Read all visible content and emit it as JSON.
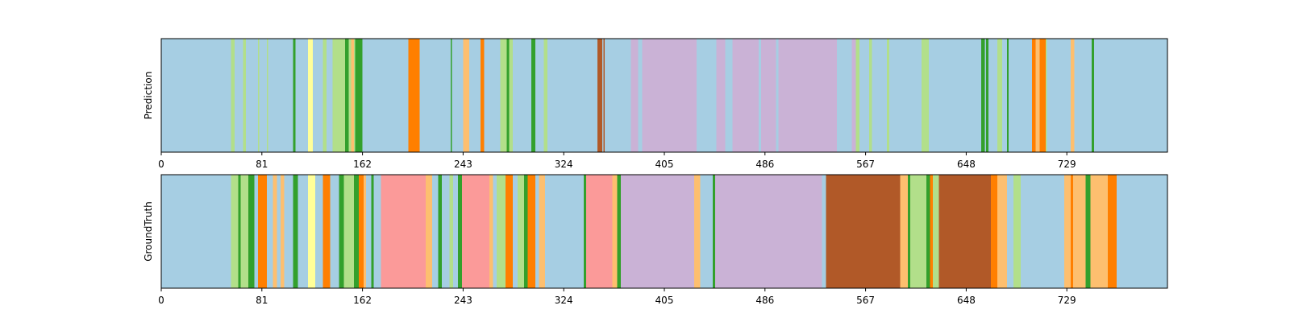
{
  "chart_data": [
    {
      "type": "heatmap",
      "ylabel": "Prediction",
      "xlim": [
        0,
        810
      ],
      "xticks": [
        0,
        81,
        162,
        243,
        324,
        405,
        486,
        567,
        648,
        729
      ],
      "segments": [
        {
          "start": 0,
          "end": 56,
          "color": "#a6cee3"
        },
        {
          "start": 56,
          "end": 59,
          "color": "#b2df8a"
        },
        {
          "start": 59,
          "end": 66,
          "color": "#a6cee3"
        },
        {
          "start": 66,
          "end": 68,
          "color": "#b2df8a"
        },
        {
          "start": 68,
          "end": 78,
          "color": "#a6cee3"
        },
        {
          "start": 78,
          "end": 79,
          "color": "#b2df8a"
        },
        {
          "start": 79,
          "end": 85,
          "color": "#a6cee3"
        },
        {
          "start": 85,
          "end": 86,
          "color": "#b2df8a"
        },
        {
          "start": 86,
          "end": 106,
          "color": "#a6cee3"
        },
        {
          "start": 106,
          "end": 108,
          "color": "#33a02c"
        },
        {
          "start": 108,
          "end": 118,
          "color": "#a6cee3"
        },
        {
          "start": 118,
          "end": 122,
          "color": "#ffff99"
        },
        {
          "start": 122,
          "end": 130,
          "color": "#a6cee3"
        },
        {
          "start": 130,
          "end": 133,
          "color": "#b2df8a"
        },
        {
          "start": 133,
          "end": 138,
          "color": "#a6cee3"
        },
        {
          "start": 138,
          "end": 148,
          "color": "#b2df8a"
        },
        {
          "start": 148,
          "end": 151,
          "color": "#33a02c"
        },
        {
          "start": 151,
          "end": 153,
          "color": "#b2df8a"
        },
        {
          "start": 153,
          "end": 155,
          "color": "#fdbf6f"
        },
        {
          "start": 155,
          "end": 156,
          "color": "#b2df8a"
        },
        {
          "start": 156,
          "end": 162,
          "color": "#33a02c"
        },
        {
          "start": 162,
          "end": 199,
          "color": "#a6cee3"
        },
        {
          "start": 199,
          "end": 208,
          "color": "#ff7f00"
        },
        {
          "start": 208,
          "end": 233,
          "color": "#a6cee3"
        },
        {
          "start": 233,
          "end": 234,
          "color": "#33a02c"
        },
        {
          "start": 234,
          "end": 243,
          "color": "#a6cee3"
        },
        {
          "start": 243,
          "end": 248,
          "color": "#fdbf6f"
        },
        {
          "start": 248,
          "end": 257,
          "color": "#a6cee3"
        },
        {
          "start": 257,
          "end": 260,
          "color": "#ff7f00"
        },
        {
          "start": 260,
          "end": 273,
          "color": "#a6cee3"
        },
        {
          "start": 273,
          "end": 278,
          "color": "#b2df8a"
        },
        {
          "start": 278,
          "end": 280,
          "color": "#33a02c"
        },
        {
          "start": 280,
          "end": 283,
          "color": "#b2df8a"
        },
        {
          "start": 283,
          "end": 298,
          "color": "#a6cee3"
        },
        {
          "start": 298,
          "end": 301,
          "color": "#33a02c"
        },
        {
          "start": 301,
          "end": 308,
          "color": "#a6cee3"
        },
        {
          "start": 308,
          "end": 311,
          "color": "#b2df8a"
        },
        {
          "start": 311,
          "end": 351,
          "color": "#a6cee3"
        },
        {
          "start": 351,
          "end": 355,
          "color": "#b15928"
        },
        {
          "start": 355,
          "end": 356,
          "color": "#a6cee3"
        },
        {
          "start": 356,
          "end": 357,
          "color": "#b15928"
        },
        {
          "start": 357,
          "end": 378,
          "color": "#a6cee3"
        },
        {
          "start": 378,
          "end": 384,
          "color": "#cab2d6"
        },
        {
          "start": 384,
          "end": 387,
          "color": "#a6cee3"
        },
        {
          "start": 387,
          "end": 431,
          "color": "#cab2d6"
        },
        {
          "start": 431,
          "end": 447,
          "color": "#a6cee3"
        },
        {
          "start": 447,
          "end": 454,
          "color": "#cab2d6"
        },
        {
          "start": 454,
          "end": 460,
          "color": "#a6cee3"
        },
        {
          "start": 460,
          "end": 481,
          "color": "#cab2d6"
        },
        {
          "start": 481,
          "end": 483,
          "color": "#a6cee3"
        },
        {
          "start": 483,
          "end": 495,
          "color": "#cab2d6"
        },
        {
          "start": 495,
          "end": 497,
          "color": "#a6cee3"
        },
        {
          "start": 497,
          "end": 544,
          "color": "#cab2d6"
        },
        {
          "start": 544,
          "end": 556,
          "color": "#a6cee3"
        },
        {
          "start": 556,
          "end": 559,
          "color": "#cab2d6"
        },
        {
          "start": 559,
          "end": 562,
          "color": "#b2df8a"
        },
        {
          "start": 562,
          "end": 570,
          "color": "#a6cee3"
        },
        {
          "start": 570,
          "end": 572,
          "color": "#b2df8a"
        },
        {
          "start": 572,
          "end": 584,
          "color": "#a6cee3"
        },
        {
          "start": 584,
          "end": 586,
          "color": "#b2df8a"
        },
        {
          "start": 586,
          "end": 612,
          "color": "#a6cee3"
        },
        {
          "start": 612,
          "end": 618,
          "color": "#b2df8a"
        },
        {
          "start": 618,
          "end": 660,
          "color": "#a6cee3"
        },
        {
          "start": 660,
          "end": 663,
          "color": "#33a02c"
        },
        {
          "start": 663,
          "end": 664,
          "color": "#a6cee3"
        },
        {
          "start": 664,
          "end": 666,
          "color": "#33a02c"
        },
        {
          "start": 666,
          "end": 673,
          "color": "#a6cee3"
        },
        {
          "start": 673,
          "end": 677,
          "color": "#b2df8a"
        },
        {
          "start": 677,
          "end": 681,
          "color": "#a6cee3"
        },
        {
          "start": 681,
          "end": 682,
          "color": "#33a02c"
        },
        {
          "start": 682,
          "end": 701,
          "color": "#a6cee3"
        },
        {
          "start": 701,
          "end": 704,
          "color": "#ff7f00"
        },
        {
          "start": 704,
          "end": 707,
          "color": "#fdbf6f"
        },
        {
          "start": 707,
          "end": 712,
          "color": "#ff7f00"
        },
        {
          "start": 712,
          "end": 713,
          "color": "#b2df8a"
        },
        {
          "start": 713,
          "end": 732,
          "color": "#a6cee3"
        },
        {
          "start": 732,
          "end": 735,
          "color": "#fdbf6f"
        },
        {
          "start": 735,
          "end": 749,
          "color": "#a6cee3"
        },
        {
          "start": 749,
          "end": 751,
          "color": "#33a02c"
        },
        {
          "start": 751,
          "end": 810,
          "color": "#a6cee3"
        }
      ]
    },
    {
      "type": "heatmap",
      "ylabel": "GroundTruth",
      "xlim": [
        0,
        810
      ],
      "xticks": [
        0,
        81,
        162,
        243,
        324,
        405,
        486,
        567,
        648,
        729
      ],
      "segments": [
        {
          "start": 0,
          "end": 56,
          "color": "#a6cee3"
        },
        {
          "start": 56,
          "end": 62,
          "color": "#b2df8a"
        },
        {
          "start": 62,
          "end": 64,
          "color": "#33a02c"
        },
        {
          "start": 64,
          "end": 70,
          "color": "#b2df8a"
        },
        {
          "start": 70,
          "end": 75,
          "color": "#33a02c"
        },
        {
          "start": 75,
          "end": 78,
          "color": "#a6cee3"
        },
        {
          "start": 78,
          "end": 85,
          "color": "#ff7f00"
        },
        {
          "start": 85,
          "end": 90,
          "color": "#a6cee3"
        },
        {
          "start": 90,
          "end": 93,
          "color": "#fdbf6f"
        },
        {
          "start": 93,
          "end": 96,
          "color": "#a6cee3"
        },
        {
          "start": 96,
          "end": 99,
          "color": "#fdbf6f"
        },
        {
          "start": 99,
          "end": 106,
          "color": "#a6cee3"
        },
        {
          "start": 106,
          "end": 110,
          "color": "#33a02c"
        },
        {
          "start": 110,
          "end": 118,
          "color": "#a6cee3"
        },
        {
          "start": 118,
          "end": 124,
          "color": "#ffff99"
        },
        {
          "start": 124,
          "end": 130,
          "color": "#a6cee3"
        },
        {
          "start": 130,
          "end": 136,
          "color": "#ff7f00"
        },
        {
          "start": 136,
          "end": 143,
          "color": "#a6cee3"
        },
        {
          "start": 143,
          "end": 147,
          "color": "#33a02c"
        },
        {
          "start": 147,
          "end": 155,
          "color": "#b2df8a"
        },
        {
          "start": 155,
          "end": 159,
          "color": "#33a02c"
        },
        {
          "start": 159,
          "end": 163,
          "color": "#ff7f00"
        },
        {
          "start": 163,
          "end": 165,
          "color": "#fdbf6f"
        },
        {
          "start": 165,
          "end": 169,
          "color": "#a6cee3"
        },
        {
          "start": 169,
          "end": 171,
          "color": "#33a02c"
        },
        {
          "start": 171,
          "end": 177,
          "color": "#a6cee3"
        },
        {
          "start": 177,
          "end": 213,
          "color": "#fb9a99"
        },
        {
          "start": 213,
          "end": 218,
          "color": "#fdbf6f"
        },
        {
          "start": 218,
          "end": 223,
          "color": "#a6cee3"
        },
        {
          "start": 223,
          "end": 226,
          "color": "#33a02c"
        },
        {
          "start": 226,
          "end": 232,
          "color": "#a6cee3"
        },
        {
          "start": 232,
          "end": 235,
          "color": "#b2df8a"
        },
        {
          "start": 235,
          "end": 239,
          "color": "#a6cee3"
        },
        {
          "start": 239,
          "end": 242,
          "color": "#33a02c"
        },
        {
          "start": 242,
          "end": 264,
          "color": "#fb9a99"
        },
        {
          "start": 264,
          "end": 267,
          "color": "#fdbf6f"
        },
        {
          "start": 267,
          "end": 270,
          "color": "#a6cee3"
        },
        {
          "start": 270,
          "end": 277,
          "color": "#b2df8a"
        },
        {
          "start": 277,
          "end": 283,
          "color": "#ff7f00"
        },
        {
          "start": 283,
          "end": 287,
          "color": "#a6cee3"
        },
        {
          "start": 287,
          "end": 292,
          "color": "#b2df8a"
        },
        {
          "start": 292,
          "end": 295,
          "color": "#33a02c"
        },
        {
          "start": 295,
          "end": 301,
          "color": "#ff7f00"
        },
        {
          "start": 301,
          "end": 304,
          "color": "#a6cee3"
        },
        {
          "start": 304,
          "end": 309,
          "color": "#fdbf6f"
        },
        {
          "start": 309,
          "end": 313,
          "color": "#a6cee3"
        },
        {
          "start": 313,
          "end": 340,
          "color": "#a6cee3"
        },
        {
          "start": 340,
          "end": 342,
          "color": "#33a02c"
        },
        {
          "start": 342,
          "end": 363,
          "color": "#fb9a99"
        },
        {
          "start": 363,
          "end": 367,
          "color": "#fdbf6f"
        },
        {
          "start": 367,
          "end": 370,
          "color": "#33a02c"
        },
        {
          "start": 370,
          "end": 429,
          "color": "#cab2d6"
        },
        {
          "start": 429,
          "end": 434,
          "color": "#fdbf6f"
        },
        {
          "start": 434,
          "end": 444,
          "color": "#a6cee3"
        },
        {
          "start": 444,
          "end": 446,
          "color": "#33a02c"
        },
        {
          "start": 446,
          "end": 532,
          "color": "#cab2d6"
        },
        {
          "start": 532,
          "end": 535,
          "color": "#a6cee3"
        },
        {
          "start": 535,
          "end": 595,
          "color": "#b15928"
        },
        {
          "start": 595,
          "end": 601,
          "color": "#fdbf6f"
        },
        {
          "start": 601,
          "end": 603,
          "color": "#33a02c"
        },
        {
          "start": 603,
          "end": 616,
          "color": "#b2df8a"
        },
        {
          "start": 616,
          "end": 619,
          "color": "#33a02c"
        },
        {
          "start": 619,
          "end": 621,
          "color": "#ff7f00"
        },
        {
          "start": 621,
          "end": 626,
          "color": "#b2df8a"
        },
        {
          "start": 626,
          "end": 668,
          "color": "#b15928"
        },
        {
          "start": 668,
          "end": 673,
          "color": "#ff7f00"
        },
        {
          "start": 673,
          "end": 681,
          "color": "#fdbf6f"
        },
        {
          "start": 681,
          "end": 686,
          "color": "#a6cee3"
        },
        {
          "start": 686,
          "end": 692,
          "color": "#b2df8a"
        },
        {
          "start": 692,
          "end": 727,
          "color": "#a6cee3"
        },
        {
          "start": 727,
          "end": 732,
          "color": "#fdbf6f"
        },
        {
          "start": 732,
          "end": 734,
          "color": "#ff7f00"
        },
        {
          "start": 734,
          "end": 744,
          "color": "#fdbf6f"
        },
        {
          "start": 744,
          "end": 748,
          "color": "#33a02c"
        },
        {
          "start": 748,
          "end": 762,
          "color": "#fdbf6f"
        },
        {
          "start": 762,
          "end": 769,
          "color": "#ff7f00"
        },
        {
          "start": 769,
          "end": 810,
          "color": "#a6cee3"
        }
      ]
    }
  ]
}
